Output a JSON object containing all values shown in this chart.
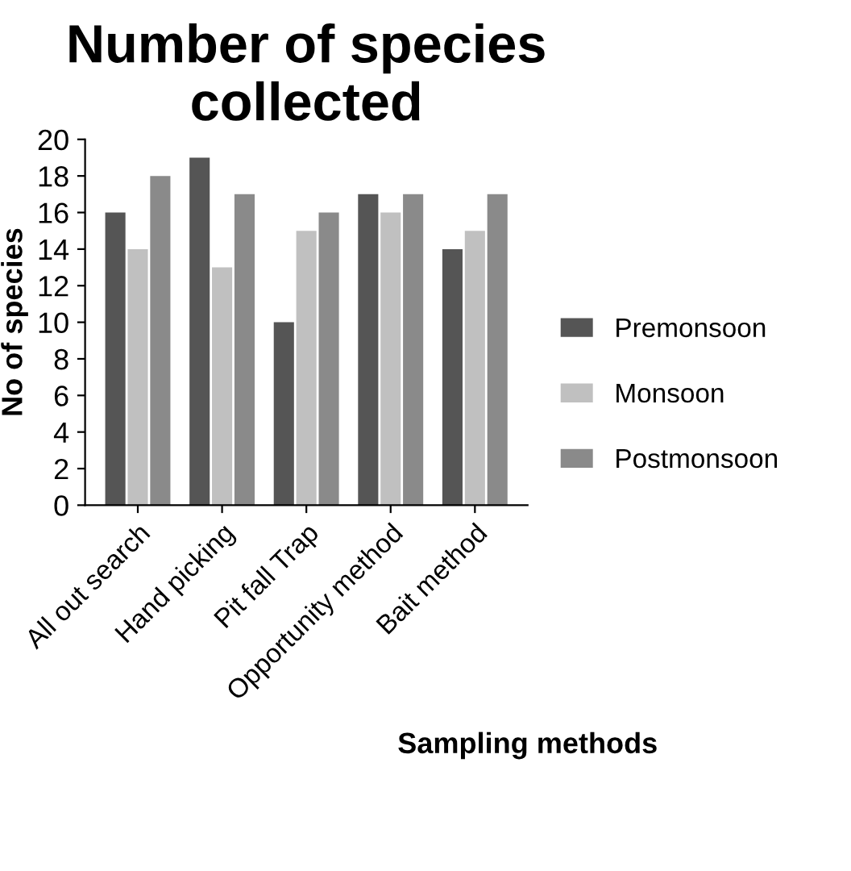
{
  "chart_data": {
    "type": "bar",
    "title": "Number of species collected",
    "xlabel": "Sampling methods",
    "ylabel": "No of species",
    "categories": [
      "All out search",
      "Hand picking",
      "Pit fall Trap",
      "Opportunity method",
      "Bait method"
    ],
    "series": [
      {
        "name": "Premonsoon",
        "color": "#555555",
        "values": [
          16,
          19,
          10,
          17,
          14
        ]
      },
      {
        "name": "Monsoon",
        "color": "#c0c0c0",
        "values": [
          14,
          13,
          15,
          16,
          15
        ]
      },
      {
        "name": "Postmonsoon",
        "color": "#8a8a8a",
        "values": [
          18,
          17,
          16,
          17,
          17
        ]
      }
    ],
    "ylim": [
      0,
      20
    ],
    "yticks": [
      0,
      2,
      4,
      6,
      8,
      10,
      12,
      14,
      16,
      18,
      20
    ],
    "grid": false,
    "legend": "right"
  }
}
